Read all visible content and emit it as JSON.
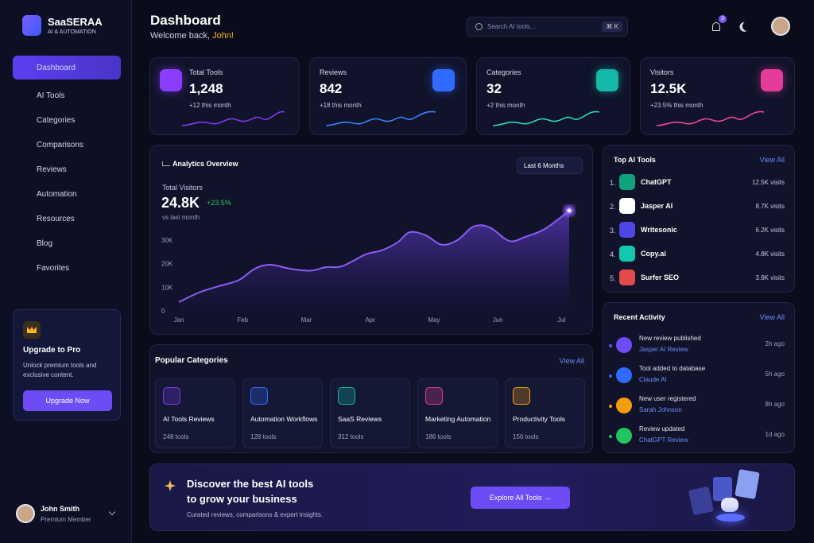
{
  "sidebar": {
    "brand": "SaaSERAA",
    "tagline": "AI & AUTOMATION",
    "nav": [
      "Dashboard",
      "AI Tools",
      "Categories",
      "Comparisons",
      "Reviews",
      "Automation",
      "Resources",
      "Blog",
      "Favorites"
    ],
    "upgrade": {
      "title": "Upgrade to Pro",
      "text": "Unlock premium tools and exclusive content.",
      "button": "Upgrade Now"
    },
    "user": {
      "name": "John Smith",
      "role": "Premium Member"
    }
  },
  "header": {
    "title": "Dashboard",
    "greeting": "Welcome back,",
    "name": "John!",
    "search": "Search AI tools...",
    "shortcut": "⌘ K",
    "notifications": "3"
  },
  "stats": [
    {
      "label": "Total Tools",
      "value": "1,248",
      "change": "+12 this month"
    },
    {
      "label": "Reviews",
      "value": "842",
      "change": "+18 this month"
    },
    {
      "label": "Categories",
      "value": "32",
      "change": "+2 this month"
    },
    {
      "label": "Visitors",
      "value": "12.5K",
      "change": "+23.5% this month"
    }
  ],
  "analytics": {
    "title": "Analytics Overview",
    "range": "Last 6 Months",
    "metric_label": "Total Visitors",
    "metric": "24.8K",
    "change": "+23.5%",
    "compare": "vs last month"
  },
  "chart_data": {
    "type": "area",
    "color": "#8b5cf6",
    "grid": false,
    "x": [
      0,
      0.31,
      0.62,
      0.94,
      1.19,
      1.43,
      1.75,
      2.06,
      2.31,
      2.56,
      2.93,
      3.18,
      3.43,
      3.62,
      3.87,
      4.12,
      4.37,
      4.62,
      4.87,
      5.18,
      5.43,
      5.74,
      6.12
    ],
    "values": [
      3.7,
      7.7,
      10.4,
      13,
      17.8,
      19.5,
      17.8,
      17,
      18.5,
      18.9,
      23.9,
      25.6,
      29,
      33.3,
      32,
      28,
      30,
      35.7,
      35.4,
      29.6,
      31.3,
      34.7,
      42.4
    ],
    "xlim": [
      0,
      6.12
    ],
    "ylim": [
      0,
      42.4
    ],
    "xticks": [
      {
        "value": 0,
        "label": "Jan"
      },
      {
        "value": 1,
        "label": "Feb"
      },
      {
        "value": 2,
        "label": "Mar"
      },
      {
        "value": 3,
        "label": "Apr"
      },
      {
        "value": 4,
        "label": "May"
      },
      {
        "value": 5,
        "label": "Jun"
      },
      {
        "value": 6,
        "label": "Jul"
      }
    ],
    "yticks": [
      0,
      {
        "value": 10,
        "label": "10K"
      },
      {
        "value": 20,
        "label": "20K"
      },
      {
        "value": 30,
        "label": "30K"
      }
    ]
  },
  "top_tools": {
    "title": "Top AI Tools",
    "link": "View All",
    "items": [
      {
        "rank": "1.",
        "name": "ChatGPT",
        "visits": "12.5K visits"
      },
      {
        "rank": "2.",
        "name": "Jasper AI",
        "visits": "8.7K visits"
      },
      {
        "rank": "3.",
        "name": "Writesonic",
        "visits": "6.2K visits"
      },
      {
        "rank": "4.",
        "name": "Copy.ai",
        "visits": "4.8K visits"
      },
      {
        "rank": "5.",
        "name": "Surfer SEO",
        "visits": "3.9K visits"
      }
    ]
  },
  "activity": {
    "title": "Recent Activity",
    "link": "View All",
    "items": [
      {
        "text": "New review published",
        "link": "Jasper AI Review",
        "time": "2h ago"
      },
      {
        "text": "Tool added to database",
        "link": "Claude AI",
        "time": "5h ago"
      },
      {
        "text": "New user registered",
        "link": "Sarah Johnson",
        "time": "8h ago"
      },
      {
        "text": "Review updated",
        "link": "ChatGPT Review",
        "time": "1d ago"
      }
    ]
  },
  "categories": {
    "title": "Popular Categories",
    "link": "View All",
    "items": [
      {
        "name": "AI Tools Reviews",
        "count": "248 tools"
      },
      {
        "name": "Automation Workflows",
        "count": "128 tools"
      },
      {
        "name": "SaaS Reviews",
        "count": "312 tools"
      },
      {
        "name": "Marketing Automation",
        "count": "186 tools"
      },
      {
        "name": "Productivity Tools",
        "count": "156 tools"
      }
    ]
  },
  "banner": {
    "title1": "Discover the best AI tools",
    "title2": "to grow your business",
    "subtitle": "Curated reviews, comparisons & expert insights.",
    "button": "Explore All Tools →"
  }
}
